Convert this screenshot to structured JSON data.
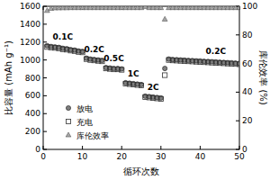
{
  "chart_data": {
    "type": "scatter",
    "x_label": "循环次数",
    "y_label": "比容量 (mAh g⁻¹)",
    "y2_label": "库伦效率 (%)",
    "x": [
      1,
      2,
      3,
      4,
      5,
      6,
      7,
      8,
      9,
      10,
      11,
      12,
      13,
      14,
      15,
      16,
      17,
      18,
      19,
      20,
      21,
      22,
      23,
      24,
      25,
      26,
      27,
      28,
      29,
      30,
      31,
      32,
      33,
      34,
      35,
      36,
      37,
      38,
      39,
      40,
      41,
      42,
      43,
      44,
      45,
      46,
      47,
      48,
      49,
      50
    ],
    "xlim": [
      0,
      50
    ],
    "xticks": [
      0,
      10,
      20,
      30,
      40,
      50
    ],
    "ylim": [
      0,
      1600
    ],
    "yticks": [
      0,
      200,
      400,
      600,
      800,
      1000,
      1200,
      1400,
      1600
    ],
    "y2lim": [
      0,
      100
    ],
    "y2ticks": [
      0,
      20,
      40,
      60,
      80,
      100
    ],
    "legend": "lower left",
    "series": [
      {
        "name": "放电",
        "color": "#7f7f7f",
        "marker": "circle",
        "values": [
          1160,
          1150,
          1145,
          1140,
          1130,
          1125,
          1115,
          1110,
          1100,
          1095,
          1020,
          1010,
          1005,
          1000,
          995,
          915,
          910,
          905,
          905,
          900,
          745,
          740,
          735,
          730,
          725,
          595,
          590,
          585,
          580,
          575,
          905,
          1010,
          1005,
          1003,
          1000,
          998,
          995,
          993,
          990,
          988,
          985,
          983,
          980,
          978,
          975,
          973,
          970,
          968,
          965,
          962
        ]
      },
      {
        "name": "充电",
        "color": "#333333",
        "marker": "square",
        "values": [
          1145,
          1140,
          1135,
          1130,
          1120,
          1115,
          1105,
          1100,
          1090,
          1085,
          1010,
          1000,
          995,
          990,
          985,
          905,
          900,
          895,
          895,
          890,
          735,
          730,
          725,
          720,
          715,
          585,
          580,
          575,
          570,
          565,
          830,
          1000,
          995,
          993,
          990,
          988,
          985,
          983,
          980,
          978,
          975,
          973,
          970,
          968,
          965,
          963,
          960,
          958,
          955,
          952
        ]
      },
      {
        "name": "库伦效率",
        "color": "#a6a6a6",
        "marker": "triangle",
        "axis": "y2",
        "values": [
          97,
          98.5,
          98.8,
          98.8,
          98.9,
          98.9,
          99,
          99,
          99,
          99,
          99,
          99,
          99,
          99,
          99,
          99,
          99,
          99,
          99,
          99,
          99,
          99,
          99,
          99,
          99,
          99.8,
          99,
          99,
          99,
          99,
          91,
          99,
          99,
          99,
          99,
          99,
          99,
          99,
          99,
          99,
          99,
          99,
          99,
          99,
          99,
          99,
          99,
          99,
          99,
          99
        ]
      }
    ],
    "annotations": [
      {
        "text": "0.1C",
        "x": 5,
        "y": 1230
      },
      {
        "text": "0.2C",
        "x": 13,
        "y": 1085
      },
      {
        "text": "0.5C",
        "x": 18,
        "y": 990
      },
      {
        "text": "1C",
        "x": 23,
        "y": 815
      },
      {
        "text": "2C",
        "x": 28,
        "y": 665
      },
      {
        "text": "0.2C",
        "x": 44,
        "y": 1070
      }
    ]
  }
}
